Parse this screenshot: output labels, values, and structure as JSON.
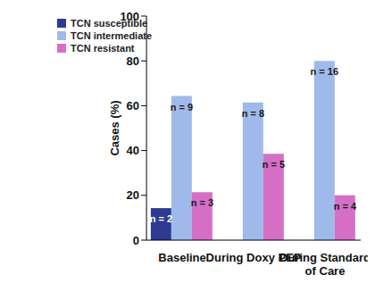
{
  "chart_data": {
    "type": "bar",
    "categories": [
      "Baseline",
      "During Doxy PEP",
      "During Standard of Care"
    ],
    "y_label": "Cases (%)",
    "ylim": [
      0,
      100
    ],
    "yticks": [
      0,
      20,
      40,
      60,
      80,
      100
    ],
    "grid": false,
    "legend": "upper left",
    "series": [
      {
        "name": "TCN susceptible",
        "color": "#2e3a92",
        "values": [
          14.3,
          null,
          null
        ],
        "count_labels": [
          "n = 2",
          null,
          null
        ]
      },
      {
        "name": "TCN intermediate",
        "color": "#9fbaea",
        "values": [
          64.3,
          61.5,
          80
        ],
        "count_labels": [
          "n = 9",
          "n = 8",
          "n = 16"
        ]
      },
      {
        "name": "TCN resistant",
        "color": "#d56fc6",
        "values": [
          21.4,
          38.5,
          20
        ],
        "count_labels": [
          "n = 3",
          "n = 5",
          "n = 4"
        ]
      }
    ]
  }
}
